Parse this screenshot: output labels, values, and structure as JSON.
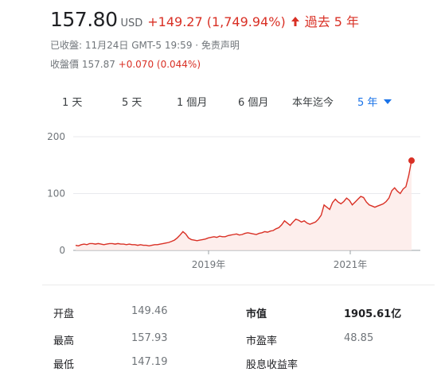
{
  "header": {
    "price": "157.80",
    "currency": "USD",
    "change": "+149.27 (1,749.94%)",
    "period": "過去 5 年",
    "change_color": "#d93025"
  },
  "sub": {
    "closed": "已收盤: 11月24日 GMT-5 19:59 · 免责声明",
    "after_label": "收盤價",
    "after_price": "157.87",
    "after_change": "+0.070 (0.044%)"
  },
  "tabs": [
    {
      "label": "1 天",
      "active": false
    },
    {
      "label": "5 天",
      "active": false
    },
    {
      "label": "1 個月",
      "active": false
    },
    {
      "label": "6 個月",
      "active": false
    },
    {
      "label": "本年迄今",
      "active": false
    },
    {
      "label": "5 年",
      "active": true
    }
  ],
  "chart_data": {
    "type": "area",
    "x_ticks": [
      "2019年",
      "2021年"
    ],
    "y_ticks": [
      "0",
      "100",
      "200"
    ],
    "ylim": [
      0,
      200
    ],
    "line_color": "#d93025",
    "fill_color": "#fce8e6",
    "series": [
      {
        "values": [
          9,
          8,
          10,
          11,
          10,
          12,
          12,
          11,
          12,
          11,
          10,
          11,
          12,
          12,
          11,
          12,
          11,
          11,
          10,
          11,
          10,
          10,
          9,
          10,
          9,
          9,
          8,
          9,
          10,
          10,
          11,
          12,
          13,
          14,
          16,
          18,
          22,
          27,
          33,
          29,
          22,
          19,
          18,
          17,
          18,
          19,
          20,
          22,
          23,
          24,
          23,
          25,
          24,
          24,
          26,
          27,
          28,
          29,
          27,
          28,
          30,
          31,
          30,
          29,
          28,
          30,
          31,
          33,
          32,
          34,
          35,
          38,
          40,
          45,
          52,
          48,
          44,
          50,
          55,
          53,
          50,
          52,
          48,
          46,
          48,
          50,
          55,
          62,
          80,
          76,
          72,
          84,
          90,
          85,
          82,
          86,
          92,
          88,
          80,
          85,
          90,
          95,
          93,
          85,
          80,
          78,
          76,
          78,
          80,
          82,
          86,
          92,
          105,
          110,
          104,
          100,
          108,
          112,
          132,
          158
        ]
      }
    ]
  },
  "stats": {
    "rows": [
      {
        "k1": "开盘",
        "v1": "149.46",
        "k2": "市值",
        "v2": "1905.61亿"
      },
      {
        "k1": "最高",
        "v1": "157.93",
        "k2": "市盈率",
        "v2": "48.85"
      },
      {
        "k1": "最低",
        "v1": "147.19",
        "k2": "股息收益率",
        "v2": ""
      }
    ]
  }
}
